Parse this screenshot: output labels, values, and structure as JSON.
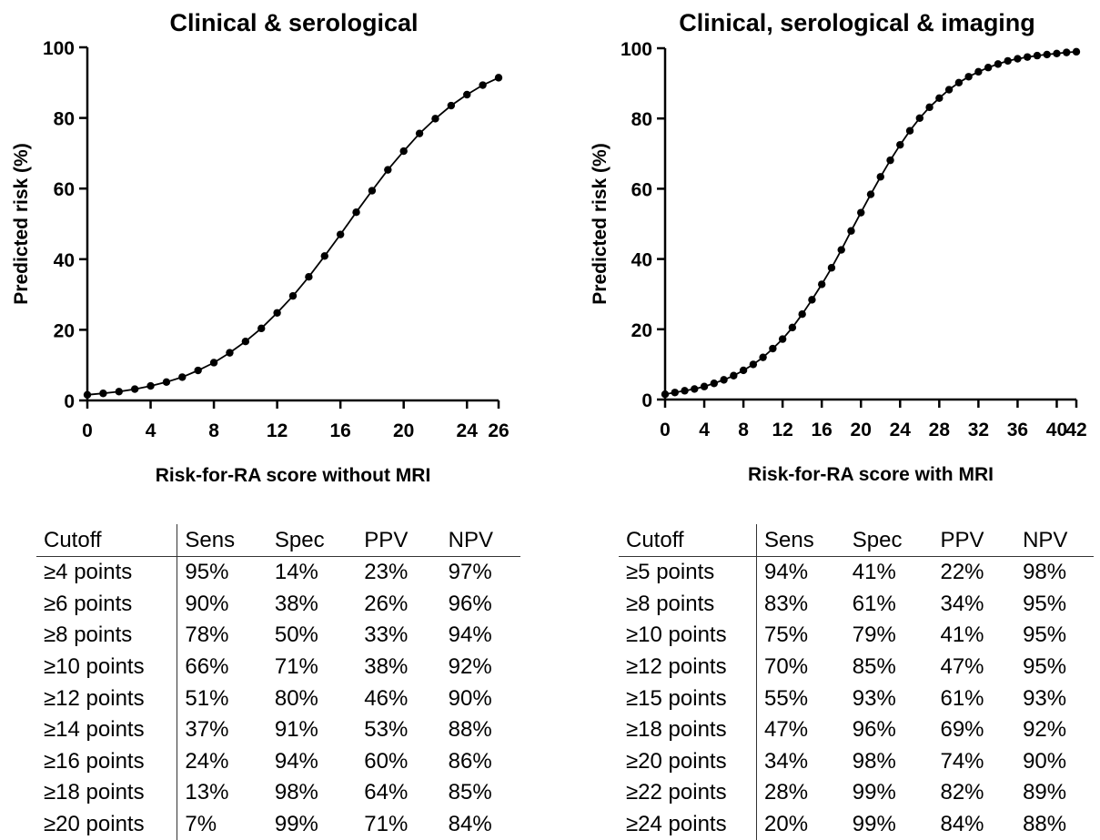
{
  "chart_data": [
    {
      "type": "line",
      "title": "Clinical & serological",
      "xlabel": "Risk-for-RA score without MRI",
      "ylabel": "Predicted risk  (%)",
      "xlim": [
        0,
        26
      ],
      "ylim": [
        0,
        100
      ],
      "xticks": [
        0,
        4,
        8,
        12,
        16,
        20,
        24,
        26
      ],
      "yticks": [
        0,
        20,
        40,
        60,
        80,
        100
      ],
      "x": [
        0,
        1,
        2,
        3,
        4,
        5,
        6,
        7,
        8,
        9,
        10,
        11,
        12,
        13,
        14,
        15,
        16,
        17,
        18,
        19,
        20,
        21,
        22,
        23,
        24,
        25,
        26
      ],
      "values": [
        1.6,
        2.0,
        2.5,
        3.2,
        4.1,
        5.2,
        6.6,
        8.5,
        10.7,
        13.5,
        16.7,
        20.4,
        24.8,
        29.6,
        35.0,
        40.9,
        47.0,
        53.3,
        59.4,
        65.3,
        70.6,
        75.6,
        79.8,
        83.5,
        86.6,
        89.3,
        91.4
      ]
    },
    {
      "type": "line",
      "title": "Clinical, serological & imaging",
      "xlabel": "Risk-for-RA score with MRI",
      "ylabel": "Predicted risk  (%)",
      "xlim": [
        0,
        42
      ],
      "ylim": [
        0,
        100
      ],
      "xticks": [
        0,
        4,
        8,
        12,
        16,
        20,
        24,
        28,
        32,
        36,
        40,
        42
      ],
      "yticks": [
        0,
        20,
        40,
        60,
        80,
        100
      ],
      "x": [
        0,
        1,
        2,
        3,
        4,
        5,
        6,
        7,
        8,
        9,
        10,
        11,
        12,
        13,
        14,
        15,
        16,
        17,
        18,
        19,
        20,
        21,
        22,
        23,
        24,
        25,
        26,
        27,
        28,
        29,
        30,
        31,
        32,
        33,
        34,
        35,
        36,
        37,
        38,
        39,
        40,
        41,
        42
      ],
      "values": [
        1.5,
        2.0,
        2.5,
        3.0,
        3.7,
        4.6,
        5.6,
        6.8,
        8.3,
        10.0,
        12.0,
        14.5,
        17.2,
        20.5,
        24.3,
        28.4,
        32.8,
        37.5,
        42.6,
        48.0,
        53.2,
        58.4,
        63.4,
        68.1,
        72.5,
        76.5,
        80.1,
        83.2,
        85.8,
        88.2,
        90.2,
        91.9,
        93.3,
        94.5,
        95.5,
        96.4,
        97.0,
        97.5,
        97.9,
        98.2,
        98.5,
        98.8,
        99.0
      ]
    }
  ],
  "tables": [
    {
      "headers": [
        "Cutoff",
        "Sens",
        "Spec",
        "PPV",
        "NPV"
      ],
      "rows": [
        [
          "≥4 points",
          "95%",
          "14%",
          "23%",
          "97%"
        ],
        [
          "≥6 points",
          "90%",
          "38%",
          "26%",
          "96%"
        ],
        [
          "≥8 points",
          "78%",
          "50%",
          "33%",
          "94%"
        ],
        [
          "≥10 points",
          "66%",
          "71%",
          "38%",
          "92%"
        ],
        [
          "≥12 points",
          "51%",
          "80%",
          "46%",
          "90%"
        ],
        [
          "≥14 points",
          "37%",
          "91%",
          "53%",
          "88%"
        ],
        [
          "≥16 points",
          "24%",
          "94%",
          "60%",
          "86%"
        ],
        [
          "≥18 points",
          "13%",
          "98%",
          "64%",
          "85%"
        ],
        [
          "≥20 points",
          "7%",
          "99%",
          "71%",
          "84%"
        ]
      ]
    },
    {
      "headers": [
        "Cutoff",
        "Sens",
        "Spec",
        "PPV",
        "NPV"
      ],
      "rows": [
        [
          "≥5 points",
          "94%",
          "41%",
          "22%",
          "98%"
        ],
        [
          "≥8 points",
          "83%",
          "61%",
          "34%",
          "95%"
        ],
        [
          "≥10 points",
          "75%",
          "79%",
          "41%",
          "95%"
        ],
        [
          "≥12 points",
          "70%",
          "85%",
          "47%",
          "95%"
        ],
        [
          "≥15 points",
          "55%",
          "93%",
          "61%",
          "93%"
        ],
        [
          "≥18 points",
          "47%",
          "96%",
          "69%",
          "92%"
        ],
        [
          "≥20 points",
          "34%",
          "98%",
          "74%",
          "90%"
        ],
        [
          "≥22 points",
          "28%",
          "99%",
          "82%",
          "89%"
        ],
        [
          "≥24 points",
          "20%",
          "99%",
          "84%",
          "88%"
        ]
      ]
    }
  ]
}
